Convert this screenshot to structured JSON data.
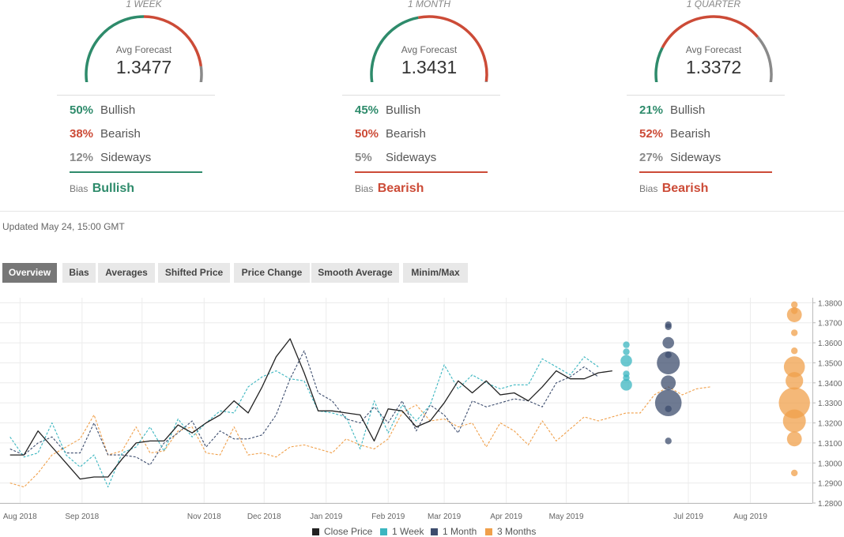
{
  "forecast_panels": [
    {
      "period": "1 WEEK",
      "avg_label": "Avg Forecast",
      "avg_value": "1.3477",
      "bullish_pct": "50%",
      "bullish_label": "Bullish",
      "bullish": 50,
      "bearish_pct": "38%",
      "bearish_label": "Bearish",
      "bearish": 38,
      "sideways_pct": "12%",
      "sideways_label": "Sideways",
      "sideways": 12,
      "bias_label": "Bias",
      "bias_value": "Bullish",
      "bias_color": "#2e8b6b"
    },
    {
      "period": "1 MONTH",
      "avg_label": "Avg Forecast",
      "avg_value": "1.3431",
      "bullish_pct": "45%",
      "bullish_label": "Bullish",
      "bullish": 45,
      "bearish_pct": "50%",
      "bearish_label": "Bearish",
      "bearish": 50,
      "sideways_pct": "5%",
      "sideways_label": "Sideways",
      "sideways": 5,
      "bias_label": "Bias",
      "bias_value": "Bearish",
      "bias_color": "#cc4b37"
    },
    {
      "period": "1 QUARTER",
      "avg_label": "Avg Forecast",
      "avg_value": "1.3372",
      "bullish_pct": "21%",
      "bullish_label": "Bullish",
      "bullish": 21,
      "bearish_pct": "52%",
      "bearish_label": "Bearish",
      "bearish": 52,
      "sideways_pct": "27%",
      "sideways_label": "Sideways",
      "sideways": 27,
      "bias_label": "Bias",
      "bias_value": "Bearish",
      "bias_color": "#cc4b37"
    }
  ],
  "colors": {
    "bullish": "#2e8b6b",
    "bearish": "#cc4b37",
    "sideways": "#8a8a8a"
  },
  "updated": "Updated May 24, 15:00 GMT",
  "tabs": [
    "Overview",
    "Bias",
    "Averages",
    "Shifted Price",
    "Price Change",
    "Smooth Average",
    "Minim/Max"
  ],
  "active_tab": 0,
  "chart_data": {
    "type": "line",
    "x_tick_labels": [
      "Aug 2018",
      "Sep 2018",
      "Nov 2018",
      "Dec 2018",
      "Jan 2019",
      "Feb 2019",
      "Mar 2019",
      "Apr 2019",
      "May 2019",
      "Jul 2019",
      "Aug 2019"
    ],
    "y_tick_labels": [
      "1.3800",
      "1.3700",
      "1.3600",
      "1.3500",
      "1.3400",
      "1.3300",
      "1.3200",
      "1.3100",
      "1.3000",
      "1.2900",
      "1.2800"
    ],
    "ylim": [
      1.28,
      1.3825
    ],
    "grid": true,
    "legend_position": "bottom",
    "series": [
      {
        "name": "Close Price",
        "color": "#222222",
        "dashed": false,
        "points": [
          [
            "2018-07-27",
            1.304
          ],
          [
            "2018-08-03",
            1.304
          ],
          [
            "2018-08-10",
            1.316
          ],
          [
            "2018-08-17",
            1.308
          ],
          [
            "2018-08-24",
            1.3
          ],
          [
            "2018-08-31",
            1.292
          ],
          [
            "2018-09-07",
            1.293
          ],
          [
            "2018-09-14",
            1.293
          ],
          [
            "2018-09-21",
            1.302
          ],
          [
            "2018-09-28",
            1.31
          ],
          [
            "2018-10-05",
            1.311
          ],
          [
            "2018-10-12",
            1.311
          ],
          [
            "2018-10-19",
            1.319
          ],
          [
            "2018-10-26",
            1.315
          ],
          [
            "2018-11-02",
            1.32
          ],
          [
            "2018-11-09",
            1.324
          ],
          [
            "2018-11-16",
            1.331
          ],
          [
            "2018-11-23",
            1.325
          ],
          [
            "2018-11-30",
            1.338
          ],
          [
            "2018-12-07",
            1.353
          ],
          [
            "2018-12-14",
            1.362
          ],
          [
            "2018-12-21",
            1.345
          ],
          [
            "2018-12-28",
            1.326
          ],
          [
            "2019-01-04",
            1.326
          ],
          [
            "2019-01-11",
            1.325
          ],
          [
            "2019-01-18",
            1.324
          ],
          [
            "2019-01-25",
            1.311
          ],
          [
            "2019-02-01",
            1.327
          ],
          [
            "2019-02-08",
            1.326
          ],
          [
            "2019-02-15",
            1.318
          ],
          [
            "2019-02-22",
            1.321
          ],
          [
            "2019-03-01",
            1.33
          ],
          [
            "2019-03-08",
            1.341
          ],
          [
            "2019-03-15",
            1.335
          ],
          [
            "2019-03-22",
            1.341
          ],
          [
            "2019-03-29",
            1.334
          ],
          [
            "2019-04-05",
            1.335
          ],
          [
            "2019-04-12",
            1.331
          ],
          [
            "2019-04-19",
            1.338
          ],
          [
            "2019-04-26",
            1.346
          ],
          [
            "2019-05-03",
            1.342
          ],
          [
            "2019-05-10",
            1.342
          ],
          [
            "2019-05-17",
            1.345
          ],
          [
            "2019-05-24",
            1.346
          ]
        ]
      },
      {
        "name": "1 Week",
        "color": "#3bb6c0",
        "dashed": true,
        "points": [
          [
            "2018-07-27",
            1.313
          ],
          [
            "2018-08-03",
            1.303
          ],
          [
            "2018-08-10",
            1.305
          ],
          [
            "2018-08-17",
            1.32
          ],
          [
            "2018-08-24",
            1.304
          ],
          [
            "2018-08-31",
            1.298
          ],
          [
            "2018-09-07",
            1.304
          ],
          [
            "2018-09-14",
            1.288
          ],
          [
            "2018-09-21",
            1.305
          ],
          [
            "2018-09-28",
            1.308
          ],
          [
            "2018-10-05",
            1.318
          ],
          [
            "2018-10-12",
            1.306
          ],
          [
            "2018-10-19",
            1.322
          ],
          [
            "2018-10-26",
            1.313
          ],
          [
            "2018-11-02",
            1.32
          ],
          [
            "2018-11-09",
            1.326
          ],
          [
            "2018-11-16",
            1.325
          ],
          [
            "2018-11-23",
            1.338
          ],
          [
            "2018-11-30",
            1.343
          ],
          [
            "2018-12-07",
            1.346
          ],
          [
            "2018-12-14",
            1.342
          ],
          [
            "2018-12-21",
            1.341
          ],
          [
            "2018-12-28",
            1.326
          ],
          [
            "2019-01-04",
            1.325
          ],
          [
            "2019-01-11",
            1.323
          ],
          [
            "2019-01-18",
            1.307
          ],
          [
            "2019-01-25",
            1.331
          ],
          [
            "2019-02-01",
            1.315
          ],
          [
            "2019-02-08",
            1.329
          ],
          [
            "2019-02-15",
            1.321
          ],
          [
            "2019-02-22",
            1.329
          ],
          [
            "2019-03-01",
            1.349
          ],
          [
            "2019-03-08",
            1.337
          ],
          [
            "2019-03-15",
            1.344
          ],
          [
            "2019-03-22",
            1.34
          ],
          [
            "2019-03-29",
            1.337
          ],
          [
            "2019-04-05",
            1.339
          ],
          [
            "2019-04-12",
            1.339
          ],
          [
            "2019-04-19",
            1.352
          ],
          [
            "2019-04-26",
            1.348
          ],
          [
            "2019-05-03",
            1.344
          ],
          [
            "2019-05-10",
            1.353
          ],
          [
            "2019-05-17",
            1.348
          ]
        ]
      },
      {
        "name": "1 Month",
        "color": "#3d4d6e",
        "dashed": true,
        "points": [
          [
            "2018-07-27",
            1.307
          ],
          [
            "2018-08-03",
            1.304
          ],
          [
            "2018-08-10",
            1.31
          ],
          [
            "2018-08-17",
            1.313
          ],
          [
            "2018-08-24",
            1.305
          ],
          [
            "2018-08-31",
            1.305
          ],
          [
            "2018-09-07",
            1.32
          ],
          [
            "2018-09-14",
            1.304
          ],
          [
            "2018-09-21",
            1.304
          ],
          [
            "2018-09-28",
            1.303
          ],
          [
            "2018-10-05",
            1.299
          ],
          [
            "2018-10-12",
            1.31
          ],
          [
            "2018-10-19",
            1.315
          ],
          [
            "2018-10-26",
            1.321
          ],
          [
            "2018-11-02",
            1.308
          ],
          [
            "2018-11-09",
            1.316
          ],
          [
            "2018-11-16",
            1.312
          ],
          [
            "2018-11-23",
            1.312
          ],
          [
            "2018-11-30",
            1.314
          ],
          [
            "2018-12-07",
            1.324
          ],
          [
            "2018-12-14",
            1.342
          ],
          [
            "2018-12-21",
            1.356
          ],
          [
            "2018-12-28",
            1.335
          ],
          [
            "2019-01-04",
            1.331
          ],
          [
            "2019-01-11",
            1.322
          ],
          [
            "2019-01-18",
            1.32
          ],
          [
            "2019-01-25",
            1.328
          ],
          [
            "2019-02-01",
            1.32
          ],
          [
            "2019-02-08",
            1.331
          ],
          [
            "2019-02-15",
            1.316
          ],
          [
            "2019-02-22",
            1.329
          ],
          [
            "2019-03-01",
            1.324
          ],
          [
            "2019-03-08",
            1.315
          ],
          [
            "2019-03-15",
            1.331
          ],
          [
            "2019-03-22",
            1.328
          ],
          [
            "2019-03-29",
            1.33
          ],
          [
            "2019-04-05",
            1.332
          ],
          [
            "2019-04-12",
            1.331
          ],
          [
            "2019-04-19",
            1.328
          ],
          [
            "2019-04-26",
            1.34
          ],
          [
            "2019-05-03",
            1.343
          ],
          [
            "2019-05-10",
            1.348
          ],
          [
            "2019-05-17",
            1.343
          ]
        ]
      },
      {
        "name": "3 Months",
        "color": "#f0a04b",
        "dashed": true,
        "points": [
          [
            "2018-07-27",
            1.29
          ],
          [
            "2018-08-03",
            1.288
          ],
          [
            "2018-08-10",
            1.295
          ],
          [
            "2018-08-17",
            1.304
          ],
          [
            "2018-08-24",
            1.308
          ],
          [
            "2018-08-31",
            1.312
          ],
          [
            "2018-09-07",
            1.324
          ],
          [
            "2018-09-14",
            1.304
          ],
          [
            "2018-09-21",
            1.306
          ],
          [
            "2018-09-28",
            1.318
          ],
          [
            "2018-10-05",
            1.305
          ],
          [
            "2018-10-12",
            1.306
          ],
          [
            "2018-10-19",
            1.316
          ],
          [
            "2018-10-26",
            1.318
          ],
          [
            "2018-11-02",
            1.305
          ],
          [
            "2018-11-09",
            1.304
          ],
          [
            "2018-11-16",
            1.318
          ],
          [
            "2018-11-23",
            1.304
          ],
          [
            "2018-11-30",
            1.305
          ],
          [
            "2018-12-07",
            1.303
          ],
          [
            "2018-12-14",
            1.308
          ],
          [
            "2018-12-21",
            1.309
          ],
          [
            "2018-12-28",
            1.307
          ],
          [
            "2019-01-04",
            1.305
          ],
          [
            "2019-01-11",
            1.312
          ],
          [
            "2019-01-18",
            1.309
          ],
          [
            "2019-01-25",
            1.307
          ],
          [
            "2019-02-01",
            1.312
          ],
          [
            "2019-02-08",
            1.325
          ],
          [
            "2019-02-15",
            1.329
          ],
          [
            "2019-02-22",
            1.321
          ],
          [
            "2019-03-01",
            1.322
          ],
          [
            "2019-03-08",
            1.318
          ],
          [
            "2019-03-15",
            1.32
          ],
          [
            "2019-03-22",
            1.308
          ],
          [
            "2019-03-29",
            1.32
          ],
          [
            "2019-04-05",
            1.316
          ],
          [
            "2019-04-12",
            1.309
          ],
          [
            "2019-04-19",
            1.321
          ],
          [
            "2019-04-26",
            1.311
          ],
          [
            "2019-05-03",
            1.317
          ],
          [
            "2019-05-10",
            1.323
          ],
          [
            "2019-05-17",
            1.321
          ],
          [
            "2019-05-24",
            1.323
          ],
          [
            "2019-05-31",
            1.325
          ],
          [
            "2019-06-07",
            1.325
          ],
          [
            "2019-06-14",
            1.334
          ],
          [
            "2019-06-21",
            1.338
          ],
          [
            "2019-06-28",
            1.334
          ],
          [
            "2019-07-05",
            1.337
          ],
          [
            "2019-07-12",
            1.338
          ]
        ]
      }
    ],
    "forecast_bubbles": [
      {
        "series": "1 Week",
        "date": "2019-05-31",
        "color": "#3bb6c0",
        "values": [
          1.359,
          1.3555,
          1.351,
          1.3445,
          1.3425,
          1.339
        ],
        "weights": [
          1,
          1,
          3,
          1,
          1,
          3
        ]
      },
      {
        "series": "1 Month",
        "date": "2019-06-21",
        "color": "#3d4d6e",
        "values": [
          1.369,
          1.368,
          1.36,
          1.354,
          1.35,
          1.34,
          1.33,
          1.327,
          1.311
        ],
        "weights": [
          1,
          1,
          3,
          1,
          12,
          5,
          16,
          1,
          1
        ]
      },
      {
        "series": "3 Months",
        "date": "2019-08-23",
        "color": "#f0a04b",
        "values": [
          1.379,
          1.376,
          1.374,
          1.365,
          1.356,
          1.348,
          1.341,
          1.33,
          1.321,
          1.312,
          1.295
        ],
        "weights": [
          1,
          1,
          5,
          1,
          1,
          10,
          7,
          22,
          12,
          5,
          1
        ]
      }
    ]
  }
}
